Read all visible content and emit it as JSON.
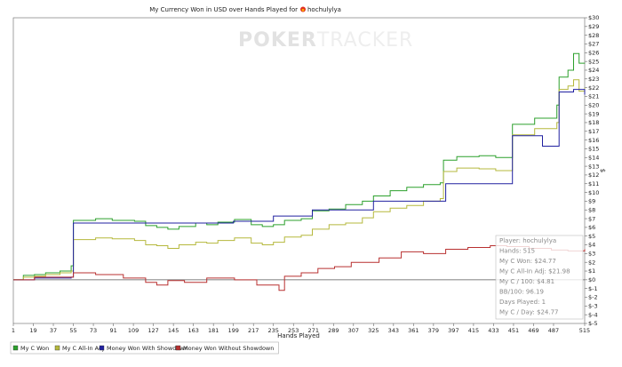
{
  "chart_data": {
    "type": "line",
    "title": "My Currency Won in USD over Hands Played for",
    "player_name": "hochulylya",
    "watermark": {
      "brand_bold": "POKER",
      "brand_light": "TRACKER"
    },
    "xlabel": "Hands Played",
    "ylabel": "$",
    "xlim": [
      1,
      515
    ],
    "ylim": [
      -5,
      30
    ],
    "x_ticks": [
      1,
      19,
      37,
      55,
      73,
      91,
      109,
      127,
      145,
      163,
      181,
      199,
      217,
      235,
      253,
      271,
      289,
      307,
      325,
      343,
      361,
      379,
      397,
      415,
      433,
      451,
      469,
      487,
      515
    ],
    "y_ticks": [
      -5,
      -4,
      -3,
      -2,
      -1,
      0,
      1,
      2,
      3,
      4,
      5,
      6,
      7,
      8,
      9,
      10,
      11,
      12,
      13,
      14,
      15,
      16,
      17,
      18,
      19,
      20,
      21,
      22,
      23,
      24,
      25,
      26,
      27,
      28,
      29,
      30
    ],
    "y_tick_labels": [
      "$-5",
      "$-4",
      "$-3",
      "$-2",
      "$-1",
      "$0",
      "$1",
      "$2",
      "$3",
      "$4",
      "$5",
      "$6",
      "$7",
      "$8",
      "$9",
      "$10",
      "$11",
      "$12",
      "$13",
      "$14",
      "$15",
      "$16",
      "$17",
      "$18",
      "$19",
      "$20",
      "$21",
      "$22",
      "$23",
      "$24",
      "$25",
      "$26",
      "$27",
      "$28",
      "$29",
      "$30"
    ],
    "grid": false,
    "series": [
      {
        "name": "My C Won",
        "color": "#2ca02c",
        "x": [
          1,
          10,
          20,
          30,
          43,
          53,
          55,
          60,
          75,
          90,
          110,
          120,
          130,
          140,
          150,
          165,
          175,
          185,
          200,
          215,
          225,
          235,
          245,
          260,
          270,
          285,
          300,
          315,
          325,
          340,
          355,
          370,
          385,
          388,
          400,
          420,
          435,
          448,
          450,
          470,
          480,
          490,
          492,
          500,
          505,
          510,
          515
        ],
        "y": [
          0,
          0.5,
          0.6,
          0.8,
          1.0,
          1.6,
          6.8,
          6.8,
          7.0,
          6.8,
          6.7,
          6.2,
          6.0,
          5.8,
          6.1,
          6.5,
          6.3,
          6.6,
          6.9,
          6.3,
          6.1,
          6.3,
          6.8,
          7.0,
          7.9,
          8.1,
          8.6,
          9.0,
          9.6,
          10.2,
          10.6,
          10.9,
          11.1,
          13.7,
          14.1,
          14.2,
          14.0,
          14.0,
          17.8,
          18.5,
          18.5,
          20.0,
          23.2,
          24.0,
          25.9,
          24.8,
          24.77
        ]
      },
      {
        "name": "My C All-In Adj",
        "color": "#b5b83c",
        "x": [
          1,
          10,
          20,
          30,
          43,
          53,
          55,
          75,
          90,
          110,
          120,
          130,
          140,
          150,
          165,
          175,
          185,
          200,
          215,
          225,
          235,
          245,
          260,
          270,
          285,
          300,
          315,
          325,
          340,
          355,
          370,
          385,
          388,
          400,
          420,
          435,
          448,
          450,
          470,
          480,
          490,
          492,
          500,
          505,
          510,
          515
        ],
        "y": [
          0,
          0.3,
          0.4,
          0.6,
          0.8,
          1.0,
          4.6,
          4.8,
          4.7,
          4.5,
          4.0,
          3.9,
          3.6,
          4.0,
          4.3,
          4.2,
          4.5,
          4.8,
          4.2,
          4.0,
          4.3,
          4.9,
          5.1,
          5.8,
          6.3,
          6.5,
          7.1,
          7.8,
          8.2,
          8.5,
          9.0,
          9.3,
          12.4,
          12.8,
          12.7,
          12.5,
          12.5,
          16.6,
          17.3,
          17.3,
          18.0,
          21.8,
          22.2,
          22.9,
          21.6,
          21.98
        ]
      },
      {
        "name": "Money Won With Showdown",
        "color": "#2020a0",
        "x": [
          1,
          20,
          53,
          55,
          199,
          235,
          270,
          325,
          388,
          390,
          448,
          450,
          475,
          477,
          490,
          492,
          505,
          515
        ],
        "y": [
          0,
          0.2,
          0.3,
          6.5,
          6.7,
          7.3,
          8.0,
          9.0,
          9.0,
          11.0,
          11.0,
          16.5,
          16.5,
          15.3,
          15.3,
          21.5,
          21.8,
          21.2
        ]
      },
      {
        "name": "Money Won Without Showdown",
        "color": "#b83030",
        "x": [
          1,
          20,
          53,
          55,
          75,
          100,
          120,
          130,
          140,
          155,
          175,
          200,
          220,
          240,
          245,
          260,
          275,
          290,
          305,
          330,
          350,
          370,
          390,
          410,
          430,
          445,
          465,
          485,
          500,
          515
        ],
        "y": [
          0,
          0.3,
          0.3,
          0.8,
          0.6,
          0.2,
          -0.3,
          -0.6,
          -0.1,
          -0.3,
          0.2,
          0.0,
          -0.6,
          -1.2,
          0.4,
          0.8,
          1.3,
          1.5,
          2.0,
          2.5,
          3.2,
          3.0,
          3.5,
          3.7,
          3.9,
          3.8,
          3.6,
          3.4,
          3.3,
          3.5
        ]
      }
    ],
    "legend_position": "bottom-left",
    "tooltip": {
      "lines": [
        "Player: hochulylya",
        "Hands: 515",
        "My C Won: $24.77",
        "My C All-In Adj: $21.98",
        "My C / 100: $4.81",
        "BB/100: 96.19",
        "Days Played: 1",
        "My C / Day: $24.77"
      ]
    }
  }
}
